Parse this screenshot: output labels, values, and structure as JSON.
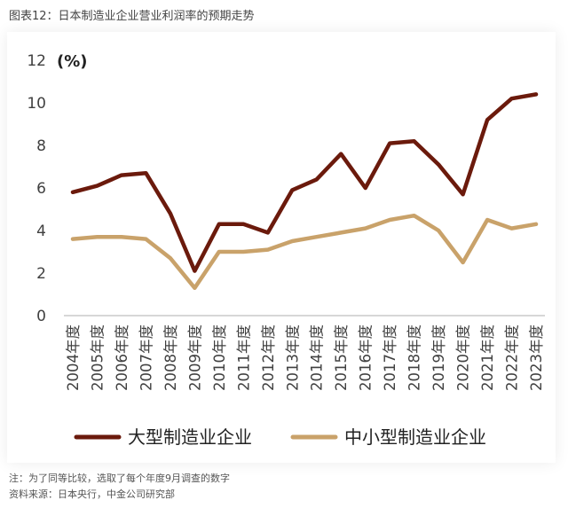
{
  "figure": {
    "title": "图表12：日本制造业企业营业利润率的预期走势",
    "note": "注：为了同等比较，选取了每个年度9月调查的数字",
    "source": "资料来源：日本央行，中金公司研究部"
  },
  "colors": {
    "large": "#6b1a0c",
    "small": "#c9a26a",
    "axis": "#bfbfbf",
    "text": "#404040"
  },
  "chart_data": {
    "type": "line",
    "title": "",
    "unit_label": "(%)",
    "xlabel": "",
    "ylabel": "",
    "ylim": [
      0,
      12
    ],
    "yticks": [
      "0",
      "2",
      "4",
      "6",
      "8",
      "10",
      "12"
    ],
    "grid": false,
    "legend_position": "bottom",
    "categories": [
      "2004年度",
      "2005年度",
      "2006年度",
      "2007年度",
      "2008年度",
      "2009年度",
      "2010年度",
      "2011年度",
      "2012年度",
      "2013年度",
      "2014年度",
      "2015年度",
      "2016年度",
      "2017年度",
      "2018年度",
      "2019年度",
      "2020年度",
      "2021年度",
      "2022年度",
      "2023年度"
    ],
    "series": [
      {
        "name": "大型制造业企业",
        "color": "#6b1a0c",
        "values": [
          5.8,
          6.1,
          6.6,
          6.7,
          4.8,
          2.1,
          4.3,
          4.3,
          3.9,
          5.9,
          6.4,
          7.6,
          6.0,
          8.1,
          8.2,
          7.1,
          5.7,
          9.2,
          10.2,
          10.4
        ]
      },
      {
        "name": "中小型制造业企业",
        "color": "#c9a26a",
        "values": [
          3.6,
          3.7,
          3.7,
          3.6,
          2.7,
          1.3,
          3.0,
          3.0,
          3.1,
          3.5,
          3.7,
          3.9,
          4.1,
          4.5,
          4.7,
          4.0,
          2.5,
          4.5,
          4.1,
          4.3
        ]
      }
    ]
  }
}
